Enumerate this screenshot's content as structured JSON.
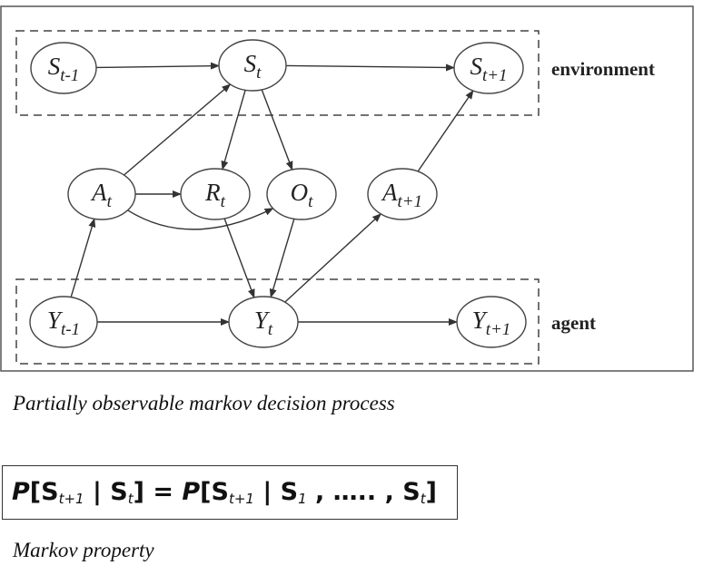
{
  "diagram": {
    "nodes": [
      {
        "id": "S_prev",
        "base": "S",
        "sub": "t-1"
      },
      {
        "id": "S_t",
        "base": "S",
        "sub": "t"
      },
      {
        "id": "S_next",
        "base": "S",
        "sub": "t+1"
      },
      {
        "id": "A_t",
        "base": "A",
        "sub": "t"
      },
      {
        "id": "R_t",
        "base": "R",
        "sub": "t"
      },
      {
        "id": "O_t",
        "base": "O",
        "sub": "t"
      },
      {
        "id": "A_next",
        "base": "A",
        "sub": "t+1"
      },
      {
        "id": "Y_prev",
        "base": "Y",
        "sub": "t-1"
      },
      {
        "id": "Y_t",
        "base": "Y",
        "sub": "t"
      },
      {
        "id": "Y_next",
        "base": "Y",
        "sub": "t+1"
      }
    ],
    "edges": [
      [
        "S_prev",
        "S_t"
      ],
      [
        "S_t",
        "S_next"
      ],
      [
        "S_t",
        "R_t"
      ],
      [
        "S_t",
        "O_t"
      ],
      [
        "A_t",
        "S_t"
      ],
      [
        "A_t",
        "R_t"
      ],
      [
        "A_t",
        "O_t"
      ],
      [
        "A_next",
        "S_next"
      ],
      [
        "Y_prev",
        "A_t"
      ],
      [
        "Y_prev",
        "Y_t"
      ],
      [
        "R_t",
        "Y_t"
      ],
      [
        "O_t",
        "Y_t"
      ],
      [
        "Y_t",
        "A_next"
      ],
      [
        "Y_t",
        "Y_next"
      ]
    ],
    "groups": {
      "environment": "environment",
      "agent": "agent"
    }
  },
  "captions": {
    "diagram": "Partially observable markov decision process",
    "formula": "Markov property"
  },
  "formula": {
    "p_left": "P",
    "open_left": "[S",
    "sub_left_1": "t+1",
    "bar_left": " | S",
    "sub_left_2": "t",
    "eq": "] = ",
    "p_right": "P",
    "open_right": "[S",
    "sub_right_1": "t+1",
    "bar_right": " | S",
    "sub_right_2": "1",
    "dots": " , ….. , S",
    "sub_right_3": "t",
    "close": "]"
  }
}
